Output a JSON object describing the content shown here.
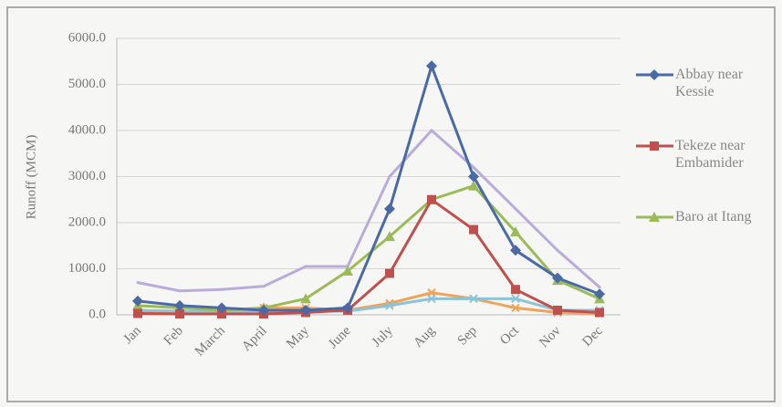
{
  "chart_data": {
    "type": "line",
    "y_label": "Runoff (MCM)",
    "categories": [
      "Jan",
      "Feb",
      "March",
      "April",
      "May",
      "June",
      "July",
      "Aug",
      "Sep",
      "Oct",
      "Nov",
      "Dec"
    ],
    "series": [
      {
        "name": "Abbay near Kessie",
        "color": "#4a6aa5",
        "marker": "diamond",
        "values": [
          300,
          200,
          150,
          100,
          100,
          150,
          2300,
          5400,
          3000,
          1400,
          800,
          450
        ]
      },
      {
        "name": "Tekeze near Embamider",
        "color": "#c0504d",
        "marker": "square",
        "values": [
          30,
          20,
          20,
          20,
          50,
          100,
          900,
          2500,
          1850,
          550,
          100,
          50
        ]
      },
      {
        "name": "Baro at Itang",
        "color": "#9bbb59",
        "marker": "triangle",
        "values": [
          200,
          150,
          100,
          150,
          350,
          950,
          1700,
          2500,
          2800,
          1800,
          750,
          350
        ]
      },
      {
        "color": "#b9acd9",
        "marker": "none",
        "values": [
          700,
          520,
          550,
          620,
          1050,
          1050,
          3000,
          4000,
          3200,
          2300,
          1400,
          600
        ]
      },
      {
        "color": "#f2a35a",
        "marker": "cross",
        "values": [
          50,
          50,
          80,
          150,
          150,
          100,
          250,
          480,
          350,
          150,
          50,
          30
        ]
      },
      {
        "color": "#8cc3d9",
        "marker": "cross",
        "values": [
          100,
          80,
          60,
          60,
          80,
          80,
          200,
          350,
          350,
          350,
          100,
          100
        ]
      }
    ],
    "ylim": [
      0,
      6000
    ],
    "yticks": [
      {
        "value": 0,
        "label": "0.0"
      },
      {
        "value": 1000,
        "label": "1000.0"
      },
      {
        "value": 2000,
        "label": "2000.0"
      },
      {
        "value": 3000,
        "label": "3000.0"
      },
      {
        "value": 4000,
        "label": "4000.0"
      },
      {
        "value": 5000,
        "label": "5000.0"
      },
      {
        "value": 6000,
        "label": "6000.0"
      }
    ],
    "grid": true
  }
}
